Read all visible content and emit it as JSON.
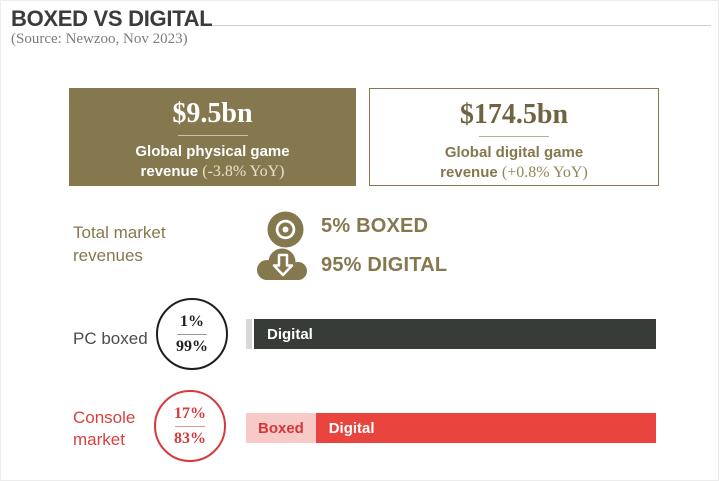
{
  "header": {
    "title": "BOXED VS DIGITAL",
    "source": "(Source: Newzoo, Nov 2023)"
  },
  "stat_boxes": {
    "physical": {
      "value": "$9.5bn",
      "label": "Global physical game revenue",
      "yoy": "(-3.8% YoY)"
    },
    "digital": {
      "value": "$174.5bn",
      "label": "Global digital game revenue",
      "yoy": "(+0.8% YoY)"
    }
  },
  "total_market": {
    "label": "Total market revenues",
    "boxed_line": "5% BOXED",
    "digital_line": "95% DIGITAL"
  },
  "pc": {
    "label": "PC boxed",
    "boxed_pct": "1%",
    "digital_pct": "99%",
    "bar_digital_label": "Digital"
  },
  "console": {
    "label": "Console market",
    "boxed_pct": "17%",
    "digital_pct": "83%",
    "bar_boxed_label": "Boxed",
    "bar_digital_label": "Digital"
  },
  "icons": {
    "disc": "disc-icon",
    "cloud_download": "cloud-download-icon"
  },
  "colors": {
    "olive": "#85784e",
    "dark_bar": "#383c38",
    "gray_segment": "#d8d8d8",
    "red": "#e9453e",
    "pink": "#f7c9c7",
    "console_text_red": "#d63a3c",
    "title_dark": "#3b3b3b"
  },
  "chart_data": [
    {
      "type": "bar",
      "title": "Global game revenue (Newzoo, Nov 2023)",
      "categories": [
        "Physical (boxed)",
        "Digital"
      ],
      "values": [
        9.5,
        174.5
      ],
      "unit": "bn USD",
      "annotations": [
        "-3.8% YoY",
        "+0.8% YoY"
      ]
    },
    {
      "type": "bar",
      "title": "Total market revenues",
      "categories": [
        "Boxed",
        "Digital"
      ],
      "values": [
        5,
        95
      ],
      "unit": "%"
    },
    {
      "type": "bar",
      "title": "PC boxed vs digital",
      "categories": [
        "Boxed",
        "Digital"
      ],
      "values": [
        1,
        99
      ],
      "unit": "%"
    },
    {
      "type": "bar",
      "title": "Console market boxed vs digital",
      "categories": [
        "Boxed",
        "Digital"
      ],
      "values": [
        17,
        83
      ],
      "unit": "%"
    }
  ]
}
